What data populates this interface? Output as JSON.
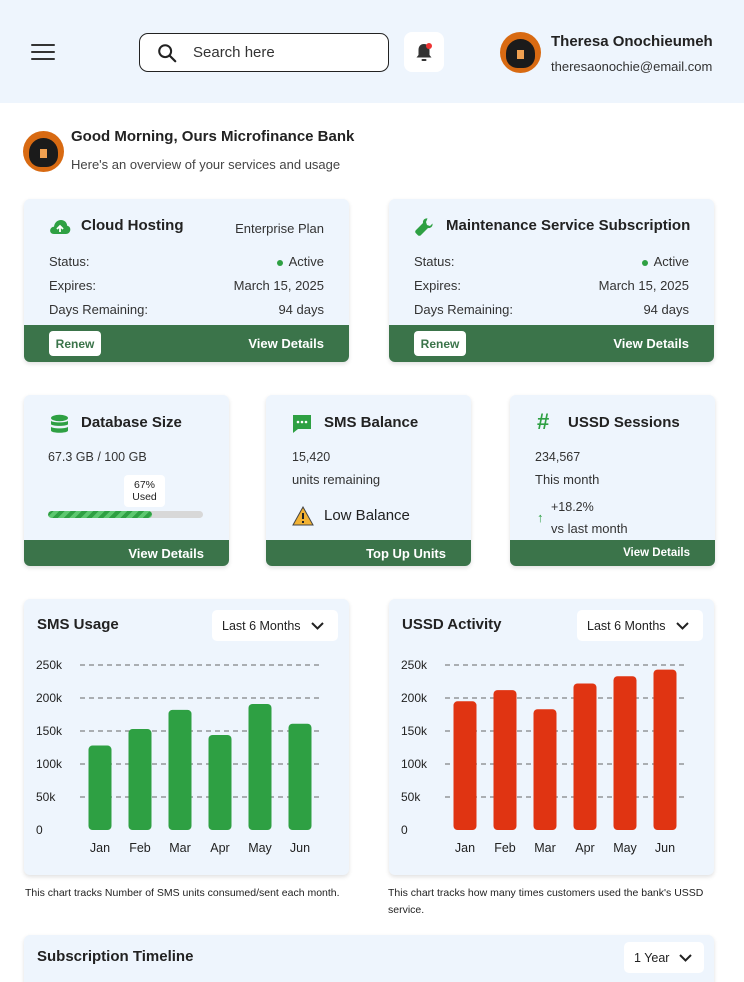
{
  "header": {
    "search_placeholder": "Search here",
    "user_name": "Theresa Onochieumeh",
    "user_email": "theresaonochie@email.com"
  },
  "greeting": {
    "title": "Good Morning, Ours Microfinance Bank",
    "subtitle": "Here's an overview of your services and usage"
  },
  "cloud": {
    "title": "Cloud Hosting",
    "plan": "Enterprise Plan",
    "status_label": "Status:",
    "status_value": "Active",
    "expires_label": "Expires:",
    "expires_value": "March 15, 2025",
    "days_label": "Days Remaining:",
    "days_value": "94 days",
    "renew_label": "Renew",
    "details_label": "View Details"
  },
  "maintenance": {
    "title": "Maintenance Service Subscription",
    "status_label": "Status:",
    "status_value": "Active",
    "expires_label": "Expires:",
    "expires_value": "March 15, 2025",
    "days_label": "Days Remaining:",
    "days_value": "94 days",
    "renew_label": "Renew",
    "details_label": "View Details"
  },
  "database": {
    "title": "Database Size",
    "usage": "67.3 GB / 100 GB",
    "percent_label": "67%",
    "used_label": "Used",
    "fill_fraction": 0.67,
    "details_label": "View Details"
  },
  "sms": {
    "title": "SMS Balance",
    "value": "15,420",
    "unit_text": "units remaining",
    "warning": "Low Balance",
    "action_label": "Top Up Units"
  },
  "ussd": {
    "title": "USSD Sessions",
    "value": "234,567",
    "period": "This month",
    "change": "+18.2%",
    "change_text": "vs last month",
    "details_label": "View Details"
  },
  "sms_usage": {
    "title": "SMS Usage",
    "range": "Last 6 Months",
    "caption": "This chart tracks Number of SMS units consumed/sent each month."
  },
  "ussd_activity": {
    "title": "USSD Activity",
    "range": "Last 6 Months",
    "caption": "This chart tracks how many times customers used the bank's USSD service."
  },
  "timeline": {
    "title": "Subscription Timeline",
    "range": "1 Year"
  },
  "colors": {
    "brand_green": "#3b744a",
    "bar_green": "#2ea043",
    "bar_red": "#e03412",
    "panel_bg": "#eef5fd"
  },
  "chart_data": [
    {
      "type": "bar",
      "title": "SMS Usage",
      "categories": [
        "Jan",
        "Feb",
        "Mar",
        "Apr",
        "May",
        "Jun"
      ],
      "values": [
        128000,
        153000,
        182000,
        144000,
        191000,
        161000
      ],
      "ylim": [
        0,
        250000
      ],
      "yticks": [
        "0",
        "50k",
        "100k",
        "150k",
        "200k",
        "250k"
      ],
      "grid": true
    },
    {
      "type": "bar",
      "title": "USSD Activity",
      "categories": [
        "Jan",
        "Feb",
        "Mar",
        "Apr",
        "May",
        "Jun"
      ],
      "values": [
        195000,
        212000,
        183000,
        222000,
        233000,
        243000
      ],
      "ylim": [
        0,
        250000
      ],
      "yticks": [
        "0",
        "50k",
        "100k",
        "150k",
        "200k",
        "250k"
      ],
      "grid": true
    }
  ]
}
